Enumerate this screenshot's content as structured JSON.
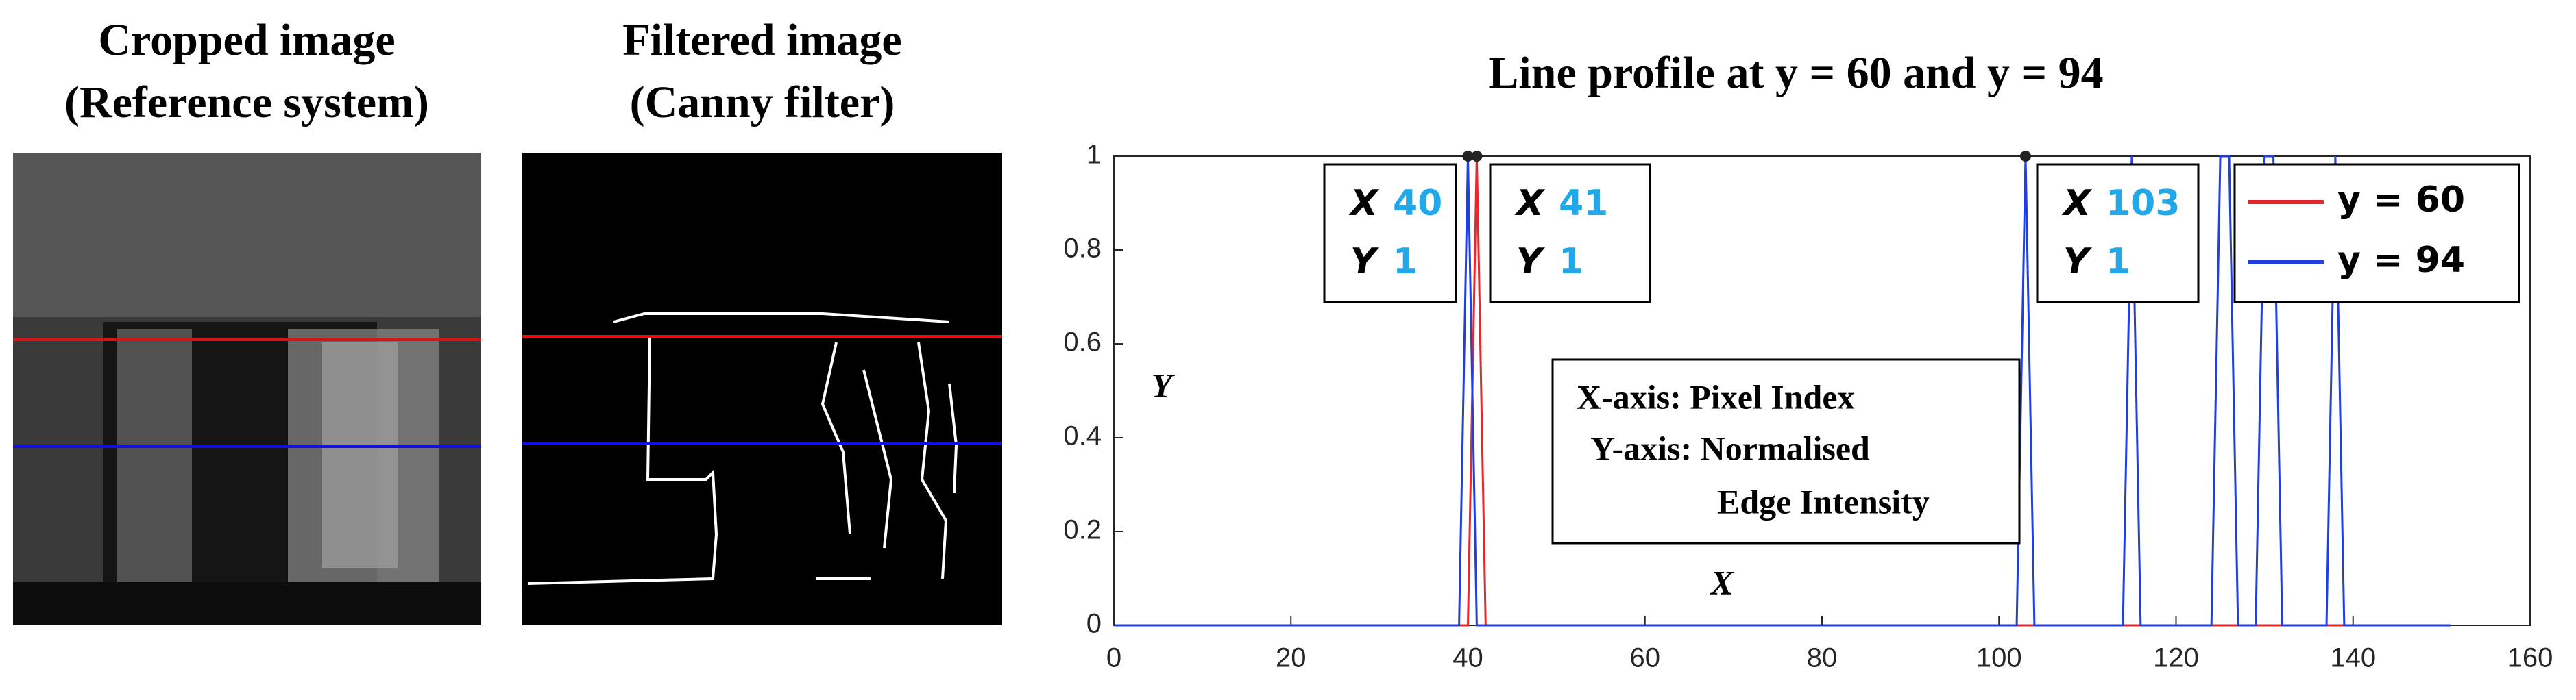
{
  "images": [
    {
      "title": [
        "Cropped image",
        "(Reference system)"
      ]
    },
    {
      "title": [
        "Filtered image",
        "(Canny filter)"
      ]
    }
  ],
  "chart_data": {
    "type": "line",
    "title": "Line profile at y = 60 and y = 94",
    "x": [
      0,
      39,
      40,
      41,
      42,
      102,
      103,
      104,
      114,
      115,
      116,
      124,
      125,
      126,
      127,
      129,
      130,
      131,
      132,
      137,
      138,
      139,
      151
    ],
    "series": [
      {
        "name": "y = 60",
        "color": "#e8262b",
        "values": [
          0,
          0,
          0,
          1,
          0,
          0,
          0,
          0,
          0,
          0,
          0,
          0,
          0,
          0,
          0,
          0,
          0,
          0,
          0,
          0,
          0,
          0,
          0
        ]
      },
      {
        "name": "y = 94",
        "color": "#1f3fe0",
        "values": [
          0,
          0,
          1,
          0,
          0,
          0,
          1,
          0,
          0,
          1,
          0,
          0,
          1,
          1,
          0,
          0,
          1,
          1,
          0,
          0,
          1,
          0,
          0
        ]
      }
    ],
    "xlim": [
      0,
      160
    ],
    "xticks": [
      0,
      20,
      40,
      60,
      80,
      100,
      120,
      140,
      160
    ],
    "ylim": [
      0,
      1
    ],
    "yticks": [
      0,
      0.2,
      0.4,
      0.6,
      0.8,
      1
    ],
    "xlabel": "X",
    "ylabel": "Y",
    "legend": "northeast",
    "datatip_labels": [
      "X",
      "Y"
    ],
    "datatips": [
      {
        "x": 40,
        "y": 1
      },
      {
        "x": 41,
        "y": 1
      },
      {
        "x": 103,
        "y": 1
      }
    ],
    "annotation": [
      "X-axis: Pixel Index",
      "Y-axis: Normalised",
      "Edge Intensity"
    ]
  }
}
